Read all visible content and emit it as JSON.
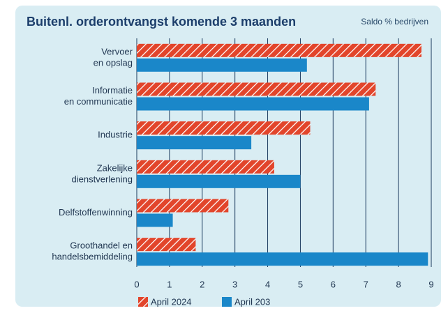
{
  "chart_data": {
    "type": "hbar",
    "title": "Buitenl. orderontvangst komende 3 maanden",
    "subtitle": "Saldo % bedrijven",
    "categories": [
      [
        "Vervoer",
        "en opslag"
      ],
      [
        "Informatie",
        "en communicatie"
      ],
      [
        "Industrie"
      ],
      [
        "Zakelijke",
        "dienstverlening"
      ],
      [
        "Delfstoffenwinning"
      ],
      [
        "Groothandel en",
        "handelsbemiddeling"
      ]
    ],
    "series": [
      {
        "name": "April 2024",
        "color": "#e2452b",
        "hatch": true,
        "values": [
          8.7,
          7.3,
          5.3,
          4.2,
          2.8,
          1.8
        ]
      },
      {
        "name": "April 203",
        "color": "#1a87c9",
        "hatch": false,
        "values": [
          5.2,
          7.1,
          3.5,
          5.0,
          1.1,
          8.9
        ]
      }
    ],
    "xlim": [
      0,
      9
    ],
    "xticks": [
      0,
      1,
      2,
      3,
      4,
      5,
      6,
      7,
      8,
      9
    ],
    "grid": true
  }
}
